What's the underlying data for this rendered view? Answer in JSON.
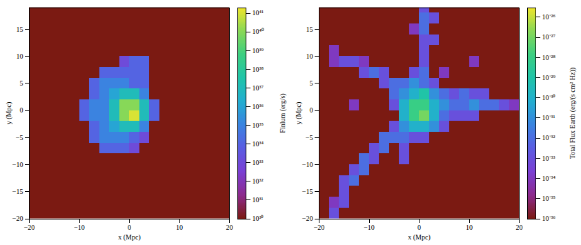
{
  "chart_data": [
    {
      "type": "heatmap",
      "xlabel": "x (Mpc)",
      "ylabel": "y (Mpc)",
      "xlim": [
        -20,
        20
      ],
      "ylim": [
        -20,
        19
      ],
      "xticks": [
        -20,
        -10,
        0,
        10,
        20
      ],
      "yticks": [
        -20,
        -15,
        -10,
        -5,
        0,
        5,
        10,
        15
      ],
      "xbins": [
        -20,
        -18,
        -16,
        -14,
        -12,
        -10,
        -8,
        -6,
        -4,
        -2,
        0,
        2,
        4,
        6,
        8,
        10,
        12,
        14,
        16,
        18,
        20
      ],
      "ybins": [
        20,
        18,
        16,
        14,
        12,
        10,
        8,
        6,
        4,
        2,
        0,
        -2,
        -4,
        -6,
        -8,
        -10,
        -12,
        -14,
        -16,
        -18,
        -20
      ],
      "values": [
        [
          1e+30,
          1e+30,
          1e+30,
          1e+30,
          1e+30,
          1e+30,
          1e+30,
          1e+30,
          1e+30,
          1e+30,
          1e+30,
          1e+30,
          1e+30,
          1e+30,
          1e+30,
          1e+30,
          1e+30,
          1e+30,
          1e+30,
          1e+30
        ],
        [
          1e+30,
          1e+30,
          1e+30,
          1e+30,
          1e+30,
          1e+30,
          1e+30,
          1e+30,
          1e+30,
          1e+30,
          1e+30,
          1e+30,
          1e+30,
          1e+30,
          1e+30,
          1e+30,
          1e+30,
          1e+30,
          1e+30,
          1e+30
        ],
        [
          1e+30,
          1e+30,
          1e+30,
          1e+30,
          1e+30,
          1e+30,
          1e+30,
          1e+30,
          1e+30,
          1e+30,
          1e+30,
          1e+30,
          1e+30,
          1e+30,
          1e+30,
          1e+30,
          1e+30,
          1e+30,
          1e+30,
          1e+30
        ],
        [
          1e+30,
          1e+30,
          1e+30,
          1e+30,
          1e+30,
          1e+30,
          1e+30,
          1e+30,
          1e+30,
          1e+30,
          1e+30,
          1e+30,
          1e+30,
          1e+30,
          1e+30,
          1e+30,
          1e+30,
          1e+30,
          1e+30,
          1e+30
        ],
        [
          1e+30,
          1e+30,
          1e+30,
          1e+30,
          1e+30,
          1e+30,
          1e+30,
          1e+30,
          1e+30,
          1e+30,
          1e+30,
          1e+30,
          1e+30,
          1e+30,
          1e+30,
          1e+30,
          1e+30,
          1e+30,
          1e+30,
          1e+30
        ],
        [
          1e+30,
          1e+30,
          1e+30,
          1e+30,
          1e+30,
          1e+30,
          1e+30,
          1e+30,
          1e+30,
          1e+33,
          1e+34,
          1e+34,
          1e+30,
          1e+30,
          1e+30,
          1e+30,
          1e+30,
          1e+30,
          1e+30,
          1e+30
        ],
        [
          1e+30,
          1e+30,
          1e+30,
          1e+30,
          1e+30,
          1e+30,
          1e+30,
          1e+34,
          1e+34,
          1e+34,
          1e+34,
          1e+34,
          1e+30,
          1e+30,
          1e+30,
          1e+30,
          1e+30,
          1e+30,
          1e+30,
          1e+30
        ],
        [
          1e+30,
          1e+30,
          1e+30,
          1e+30,
          1e+30,
          1e+30,
          1e+34,
          1e+35,
          1e+35,
          1e+35,
          1e+34,
          1e+34,
          1e+30,
          1e+30,
          1e+30,
          1e+30,
          1e+30,
          1e+30,
          1e+30,
          1e+30
        ],
        [
          1e+30,
          1e+30,
          1e+30,
          1e+30,
          1e+30,
          1e+30,
          1e+34,
          1e+35,
          1e+36,
          1e+37,
          1e+37,
          1e+35,
          1e+30,
          1e+30,
          1e+30,
          1e+30,
          1e+30,
          1e+30,
          1e+30,
          1e+30
        ],
        [
          1e+30,
          1e+30,
          1e+30,
          1e+30,
          1e+30,
          1e+34,
          1e+35,
          1e+35,
          1e+37,
          1e+40,
          1e+40,
          1e+37,
          1e+34,
          1e+30,
          1e+30,
          1e+30,
          1e+30,
          1e+30,
          1e+30,
          1e+30
        ],
        [
          1e+30,
          1e+30,
          1e+30,
          1e+30,
          1e+30,
          1e+34,
          1e+35,
          1e+35,
          1e+37,
          1e+40,
          1e+41,
          1e+37,
          1e+34,
          1e+30,
          1e+30,
          1e+30,
          1e+30,
          1e+30,
          1e+30,
          1e+30
        ],
        [
          1e+30,
          1e+30,
          1e+30,
          1e+30,
          1e+30,
          1e+30,
          1e+34,
          1e+35,
          1e+36,
          1e+37,
          1e+37,
          1e+35,
          1e+30,
          1e+30,
          1e+30,
          1e+30,
          1e+30,
          1e+30,
          1e+30,
          1e+30
        ],
        [
          1e+30,
          1e+30,
          1e+30,
          1e+30,
          1e+30,
          1e+30,
          1e+34,
          1e+35,
          1e+35,
          1e+35,
          1e+34,
          1e+33,
          1e+30,
          1e+30,
          1e+30,
          1e+30,
          1e+30,
          1e+30,
          1e+30,
          1e+30
        ],
        [
          1e+30,
          1e+30,
          1e+30,
          1e+30,
          1e+30,
          1e+30,
          1e+30,
          1e+34,
          1e+34,
          1e+34,
          1e+33,
          1e+30,
          1e+30,
          1e+30,
          1e+30,
          1e+30,
          1e+30,
          1e+30,
          1e+30,
          1e+30
        ],
        [
          1e+30,
          1e+30,
          1e+30,
          1e+30,
          1e+30,
          1e+30,
          1e+30,
          1e+30,
          1e+30,
          1e+30,
          1e+30,
          1e+30,
          1e+30,
          1e+30,
          1e+30,
          1e+30,
          1e+30,
          1e+30,
          1e+30,
          1e+30
        ],
        [
          1e+30,
          1e+30,
          1e+30,
          1e+30,
          1e+30,
          1e+30,
          1e+30,
          1e+30,
          1e+30,
          1e+30,
          1e+30,
          1e+30,
          1e+30,
          1e+30,
          1e+30,
          1e+30,
          1e+30,
          1e+30,
          1e+30,
          1e+30
        ],
        [
          1e+30,
          1e+30,
          1e+30,
          1e+30,
          1e+30,
          1e+30,
          1e+30,
          1e+30,
          1e+30,
          1e+30,
          1e+30,
          1e+30,
          1e+30,
          1e+30,
          1e+30,
          1e+30,
          1e+30,
          1e+30,
          1e+30,
          1e+30
        ],
        [
          1e+30,
          1e+30,
          1e+30,
          1e+30,
          1e+30,
          1e+30,
          1e+30,
          1e+30,
          1e+30,
          1e+30,
          1e+30,
          1e+30,
          1e+30,
          1e+30,
          1e+30,
          1e+30,
          1e+30,
          1e+30,
          1e+30,
          1e+30
        ],
        [
          1e+30,
          1e+30,
          1e+30,
          1e+30,
          1e+30,
          1e+30,
          1e+30,
          1e+30,
          1e+30,
          1e+30,
          1e+30,
          1e+30,
          1e+30,
          1e+30,
          1e+30,
          1e+30,
          1e+30,
          1e+30,
          1e+30,
          1e+30
        ],
        [
          1e+30,
          1e+30,
          1e+30,
          1e+30,
          1e+30,
          1e+30,
          1e+30,
          1e+30,
          1e+30,
          1e+30,
          1e+30,
          1e+30,
          1e+30,
          1e+30,
          1e+30,
          1e+30,
          1e+30,
          1e+30,
          1e+30,
          1e+30
        ]
      ],
      "colorbar_label": "Finlum (erg/s)",
      "colorbar_range": [
        1e+30,
        2e+41
      ],
      "colorbar_ticks": [
        {
          "value": 1e+30,
          "label": "10³⁰"
        },
        {
          "value": 1e+31,
          "label": "10³¹"
        },
        {
          "value": 1e+32,
          "label": "10³²"
        },
        {
          "value": 1e+33,
          "label": "10³³"
        },
        {
          "value": 1e+34,
          "label": "10³⁴"
        },
        {
          "value": 1e+35,
          "label": "10³⁵"
        },
        {
          "value": 1e+36,
          "label": "10³⁶"
        },
        {
          "value": 1e+37,
          "label": "10³⁷"
        },
        {
          "value": 1e+38,
          "label": "10³⁸"
        },
        {
          "value": 1e+39,
          "label": "10³⁹"
        },
        {
          "value": 1e+40,
          "label": "10⁴⁰"
        },
        {
          "value": 1e+41,
          "label": "10⁴¹"
        }
      ]
    },
    {
      "type": "heatmap",
      "xlabel": "x (Mpc)",
      "ylabel": "y (Mpc)",
      "xlim": [
        -20,
        20
      ],
      "ylim": [
        -20,
        19
      ],
      "xticks": [
        -20,
        -10,
        0,
        10,
        20
      ],
      "yticks": [
        -20,
        -15,
        -10,
        -5,
        0,
        5,
        10,
        15
      ],
      "xbins": [
        -20,
        -18,
        -16,
        -14,
        -12,
        -10,
        -8,
        -6,
        -4,
        -2,
        0,
        2,
        4,
        6,
        8,
        10,
        12,
        14,
        16,
        18,
        20
      ],
      "ybins": [
        20,
        18,
        16,
        14,
        12,
        10,
        8,
        6,
        4,
        2,
        0,
        -2,
        -4,
        -6,
        -8,
        -10,
        -12,
        -14,
        -16,
        -18,
        -20
      ],
      "values": [
        [
          1e-36,
          1e-36,
          1e-36,
          1e-36,
          1e-36,
          1e-36,
          1e-36,
          1e-36,
          1e-36,
          1e-36,
          1e-33,
          1e-36,
          1e-36,
          1e-36,
          1e-36,
          1e-36,
          1e-36,
          1e-36,
          1e-36,
          1e-36
        ],
        [
          1e-36,
          1e-36,
          1e-36,
          1e-36,
          1e-36,
          1e-36,
          1e-36,
          1e-36,
          1e-36,
          1e-36,
          1e-32,
          1e-33,
          1e-36,
          1e-36,
          1e-36,
          1e-36,
          1e-36,
          1e-36,
          1e-36,
          1e-36
        ],
        [
          1e-36,
          1e-36,
          1e-36,
          1e-36,
          1e-36,
          1e-36,
          1e-36,
          1e-36,
          1e-36,
          1e-34,
          1e-32,
          1e-36,
          1e-36,
          1e-36,
          1e-36,
          1e-36,
          1e-36,
          1e-36,
          1e-36,
          1e-36
        ],
        [
          1e-36,
          1e-36,
          1e-36,
          1e-36,
          1e-36,
          1e-36,
          1e-36,
          1e-36,
          1e-36,
          1e-36,
          1e-33,
          1e-33,
          1e-36,
          1e-36,
          1e-36,
          1e-36,
          1e-36,
          1e-36,
          1e-36,
          1e-36
        ],
        [
          1e-36,
          1e-34,
          1e-36,
          1e-36,
          1e-36,
          1e-36,
          1e-36,
          1e-36,
          1e-36,
          1e-36,
          1e-33,
          1e-36,
          1e-36,
          1e-36,
          1e-36,
          1e-36,
          1e-36,
          1e-36,
          1e-36,
          1e-36
        ],
        [
          1e-36,
          1e-34,
          1e-33,
          1e-33,
          1e-34,
          1e-36,
          1e-36,
          1e-36,
          1e-36,
          1e-36,
          1e-33,
          1e-36,
          1e-36,
          1e-36,
          1e-36,
          1e-34,
          1e-36,
          1e-36,
          1e-36,
          1e-36
        ],
        [
          1e-36,
          1e-36,
          1e-36,
          1e-36,
          1e-33,
          1e-32,
          1e-33,
          1e-36,
          1e-36,
          1e-33,
          1e-32,
          1e-36,
          1e-34,
          1e-36,
          1e-36,
          1e-36,
          1e-36,
          1e-36,
          1e-36,
          1e-36
        ],
        [
          1e-36,
          1e-36,
          1e-36,
          1e-36,
          1e-36,
          1e-36,
          1e-33,
          1e-32,
          1e-32,
          1e-31,
          1e-32,
          1e-33,
          1e-36,
          1e-36,
          1e-36,
          1e-36,
          1e-36,
          1e-36,
          1e-36,
          1e-36
        ],
        [
          1e-36,
          1e-36,
          1e-36,
          1e-36,
          1e-36,
          1e-36,
          1e-36,
          1e-32,
          1e-31,
          1e-30,
          1e-29,
          1e-31,
          1e-32,
          1e-33,
          1e-32,
          1e-33,
          1e-33,
          1e-36,
          1e-36,
          1e-36
        ],
        [
          1e-36,
          1e-36,
          1e-36,
          1e-34,
          1e-36,
          1e-36,
          1e-36,
          1e-33,
          1e-30,
          1e-28,
          1e-28,
          1e-30,
          1e-31,
          1e-32,
          1e-32,
          1e-31,
          1e-32,
          1e-32,
          1e-33,
          1e-34
        ],
        [
          1e-36,
          1e-36,
          1e-36,
          1e-36,
          1e-36,
          1e-36,
          1e-36,
          1e-36,
          1e-30,
          1e-28,
          1e-27,
          1e-30,
          1e-32,
          1e-33,
          1e-33,
          1e-33,
          1e-36,
          1e-36,
          1e-36,
          1e-36
        ],
        [
          1e-36,
          1e-36,
          1e-36,
          1e-36,
          1e-36,
          1e-36,
          1e-36,
          1e-33,
          1e-31,
          1e-30,
          1e-30,
          1e-31,
          1e-33,
          1e-36,
          1e-36,
          1e-36,
          1e-36,
          1e-36,
          1e-36,
          1e-36
        ],
        [
          1e-36,
          1e-36,
          1e-36,
          1e-36,
          1e-36,
          1e-36,
          1e-32,
          1e-32,
          1e-32,
          1e-33,
          1e-33,
          1e-36,
          1e-36,
          1e-36,
          1e-36,
          1e-36,
          1e-36,
          1e-36,
          1e-36,
          1e-36
        ],
        [
          1e-36,
          1e-36,
          1e-36,
          1e-36,
          1e-36,
          1e-33,
          1e-32,
          1e-36,
          1e-33,
          1e-36,
          1e-36,
          1e-36,
          1e-36,
          1e-36,
          1e-36,
          1e-36,
          1e-36,
          1e-36,
          1e-36,
          1e-36
        ],
        [
          1e-36,
          1e-36,
          1e-36,
          1e-36,
          1e-32,
          1e-33,
          1e-36,
          1e-36,
          1e-33,
          1e-36,
          1e-36,
          1e-36,
          1e-36,
          1e-36,
          1e-36,
          1e-36,
          1e-36,
          1e-36,
          1e-36,
          1e-36
        ],
        [
          1e-36,
          1e-36,
          1e-36,
          1e-33,
          1e-32,
          1e-36,
          1e-36,
          1e-36,
          1e-36,
          1e-36,
          1e-36,
          1e-36,
          1e-36,
          1e-36,
          1e-36,
          1e-36,
          1e-36,
          1e-36,
          1e-36,
          1e-36
        ],
        [
          1e-36,
          1e-36,
          1e-33,
          1e-32,
          1e-36,
          1e-36,
          1e-36,
          1e-36,
          1e-36,
          1e-36,
          1e-36,
          1e-36,
          1e-36,
          1e-36,
          1e-36,
          1e-36,
          1e-36,
          1e-36,
          1e-36,
          1e-36
        ],
        [
          1e-36,
          1e-36,
          1e-33,
          1e-36,
          1e-36,
          1e-36,
          1e-36,
          1e-36,
          1e-36,
          1e-36,
          1e-36,
          1e-36,
          1e-36,
          1e-36,
          1e-36,
          1e-36,
          1e-36,
          1e-36,
          1e-36,
          1e-36
        ],
        [
          1e-36,
          1e-34,
          1e-33,
          1e-36,
          1e-36,
          1e-36,
          1e-36,
          1e-36,
          1e-36,
          1e-36,
          1e-36,
          1e-36,
          1e-36,
          1e-36,
          1e-36,
          1e-36,
          1e-36,
          1e-36,
          1e-36,
          1e-36
        ],
        [
          1e-36,
          1e-33,
          1e-36,
          1e-36,
          1e-36,
          1e-36,
          1e-36,
          1e-36,
          1e-36,
          1e-36,
          1e-36,
          1e-36,
          1e-36,
          1e-36,
          1e-36,
          1e-36,
          1e-36,
          1e-36,
          1e-36,
          1e-36
        ]
      ],
      "colorbar_label": "Total Flux Earth (erg/(s cm² Hz))",
      "colorbar_range": [
        1e-36,
        3e-26
      ],
      "colorbar_ticks": [
        {
          "value": 1e-36,
          "label": "10⁻³⁶"
        },
        {
          "value": 1e-35,
          "label": "10⁻³⁵"
        },
        {
          "value": 1e-34,
          "label": "10⁻³⁴"
        },
        {
          "value": 1e-33,
          "label": "10⁻³³"
        },
        {
          "value": 1e-32,
          "label": "10⁻³²"
        },
        {
          "value": 1e-31,
          "label": "10⁻³¹"
        },
        {
          "value": 1e-30,
          "label": "10⁻³⁰"
        },
        {
          "value": 1e-29,
          "label": "10⁻²⁹"
        },
        {
          "value": 1e-28,
          "label": "10⁻²⁸"
        },
        {
          "value": 1e-27,
          "label": "10⁻²⁷"
        },
        {
          "value": 1e-26,
          "label": "10⁻²⁶"
        }
      ]
    }
  ]
}
